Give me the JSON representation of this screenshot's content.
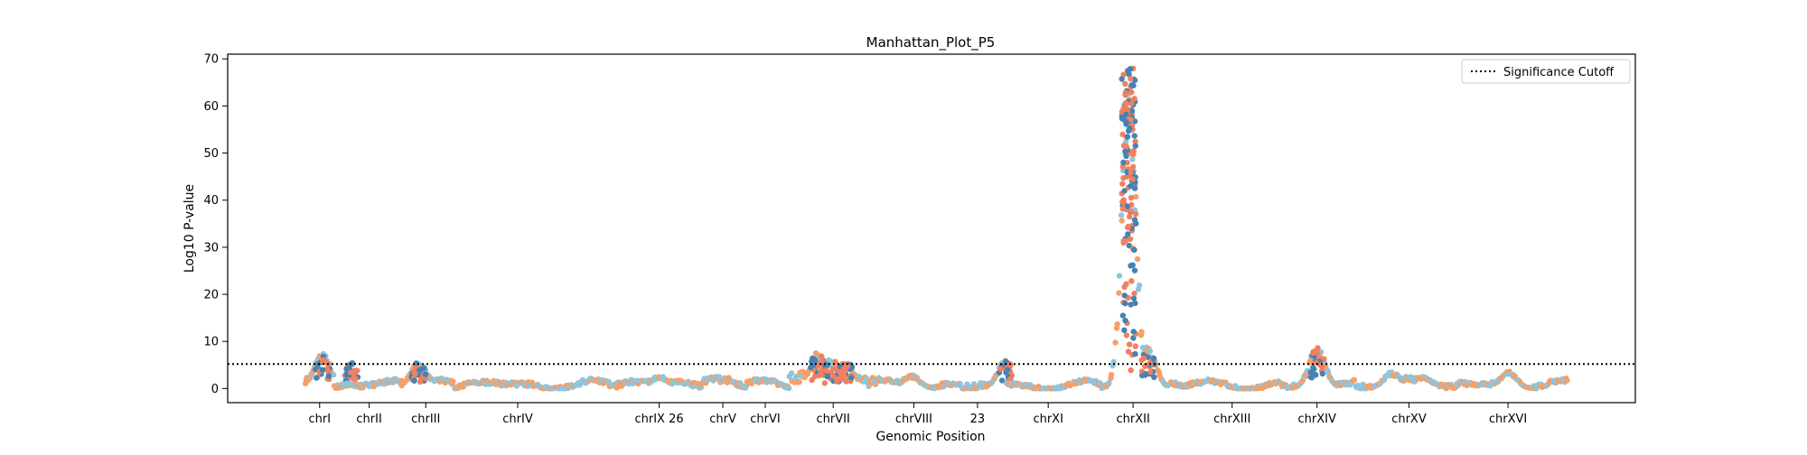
{
  "chart_data": {
    "type": "scatter",
    "title": "Manhattan_Plot_P5",
    "xlabel": "Genomic Position",
    "ylabel": "Log10 P-value",
    "ylim": [
      -3,
      71
    ],
    "yticks": [
      0,
      10,
      20,
      30,
      40,
      50,
      60,
      70
    ],
    "grid": false,
    "legend_position": "top-right",
    "significance_cutoff": 5.2,
    "legend": [
      {
        "label": "Significance Cutoff",
        "style": "dotted"
      }
    ],
    "colors": {
      "series_a": "#4682b4",
      "series_b": "#f08060",
      "series_c": "#8ec5dc",
      "series_d": "#f4a06a",
      "cutoff_line": "#000000"
    },
    "chromosomes": [
      {
        "label": "chrI",
        "center": 0.1,
        "span": [
          0.0,
          0.2
        ],
        "peaks": [
          {
            "pos": 0.12,
            "height": 7.5
          },
          {
            "pos": 0.32,
            "height": 5.8
          }
        ],
        "base": 1.8
      },
      {
        "label": "chrII",
        "center": 0.45,
        "span": [
          0.2,
          0.68
        ],
        "peaks": [],
        "base": 1.0
      },
      {
        "label": "chrIII",
        "center": 0.85,
        "span": [
          0.68,
          1.05
        ],
        "peaks": [
          {
            "pos": 0.8,
            "height": 5.6
          }
        ],
        "base": 1.0
      },
      {
        "label": "chrIV",
        "center": 1.5,
        "span": [
          1.05,
          2.15
        ],
        "peaks": [],
        "base": 1.0
      },
      {
        "label": "chrIX 26",
        "center": 2.5,
        "span": [
          2.15,
          2.8
        ],
        "peaks": [
          {
            "pos": 2.5,
            "height": 2.8
          }
        ],
        "base": 1.2
      },
      {
        "label": "chrV",
        "center": 2.95,
        "span": [
          2.8,
          3.12
        ],
        "peaks": [],
        "base": 1.4
      },
      {
        "label": "chrVI",
        "center": 3.25,
        "span": [
          3.12,
          3.42
        ],
        "peaks": [],
        "base": 1.0
      },
      {
        "label": "chrVII",
        "center": 3.73,
        "span": [
          3.42,
          4.08
        ],
        "peaks": [
          {
            "pos": 3.62,
            "height": 7.8
          },
          {
            "pos": 3.72,
            "height": 6.5
          },
          {
            "pos": 3.82,
            "height": 6.0
          }
        ],
        "base": 2.5
      },
      {
        "label": "chrVIII",
        "center": 4.3,
        "span": [
          4.08,
          4.52
        ],
        "peaks": [
          {
            "pos": 4.28,
            "height": 3.0
          }
        ],
        "base": 1.0
      },
      {
        "label": "23",
        "center": 4.75,
        "span": [
          4.52,
          4.95
        ],
        "peaks": [
          {
            "pos": 4.95,
            "height": 6.2
          }
        ],
        "base": 1.2
      },
      {
        "label": "chrXI",
        "center": 5.25,
        "span": [
          4.95,
          5.62
        ],
        "peaks": [],
        "base": 0.8
      },
      {
        "label": "chrXII",
        "center": 5.85,
        "span": [
          5.62,
          6.2
        ],
        "peaks": [
          {
            "pos": 5.82,
            "height": 68
          },
          {
            "pos": 5.95,
            "height": 9.0
          }
        ],
        "base": 1.0
      },
      {
        "label": "chrXIII",
        "center": 6.55,
        "span": [
          6.2,
          6.9
        ],
        "peaks": [],
        "base": 0.9
      },
      {
        "label": "chrXIV",
        "center": 7.15,
        "span": [
          6.9,
          7.42
        ],
        "peaks": [
          {
            "pos": 7.15,
            "height": 8.8
          }
        ],
        "base": 1.2
      },
      {
        "label": "chrXV",
        "center": 7.8,
        "span": [
          7.42,
          8.15
        ],
        "peaks": [
          {
            "pos": 7.68,
            "height": 3.6
          },
          {
            "pos": 7.9,
            "height": 2.8
          }
        ],
        "base": 1.3
      },
      {
        "label": "chrXVI",
        "center": 8.5,
        "span": [
          8.15,
          8.92
        ],
        "peaks": [
          {
            "pos": 8.5,
            "height": 3.8
          }
        ],
        "base": 1.0
      }
    ],
    "xlim": [
      -0.55,
      9.4
    ]
  }
}
